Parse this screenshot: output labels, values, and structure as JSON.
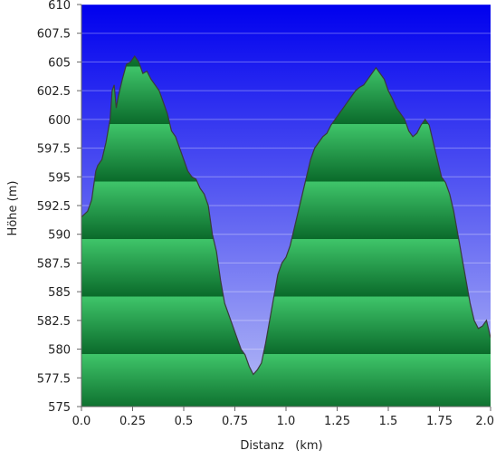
{
  "chart_data": {
    "type": "area",
    "title": "",
    "xlabel": "Distanz   (km)",
    "ylabel": "Höhe (m)",
    "xlim": [
      0.0,
      2.0
    ],
    "ylim": [
      575,
      610
    ],
    "x_ticks": [
      "0.0",
      "0.25",
      "0.5",
      "0.75",
      "1.0",
      "1.25",
      "1.5",
      "1.75",
      "2.0"
    ],
    "y_ticks": [
      "575",
      "577.5",
      "580",
      "582.5",
      "585",
      "587.5",
      "590",
      "592.5",
      "595",
      "597.5",
      "600",
      "602.5",
      "605",
      "607.5",
      "610"
    ],
    "grid": "horizontal",
    "colors": {
      "sky_top": "#0000ee",
      "sky_bottom": "#b8bef6",
      "fill_light": "#3fc56a",
      "fill_dark": "#0a6a2a",
      "outline": "#3a3a3a"
    },
    "series": [
      {
        "x": [
          0.0,
          0.03,
          0.05,
          0.07,
          0.08,
          0.1,
          0.12,
          0.14,
          0.15,
          0.16,
          0.17,
          0.18,
          0.2,
          0.22,
          0.24,
          0.26,
          0.28,
          0.3,
          0.32,
          0.34,
          0.36,
          0.38,
          0.4,
          0.42,
          0.44,
          0.46,
          0.48,
          0.5,
          0.52,
          0.54,
          0.56,
          0.58,
          0.6,
          0.62,
          0.64,
          0.66,
          0.68,
          0.7,
          0.72,
          0.74,
          0.76,
          0.78,
          0.8,
          0.82,
          0.84,
          0.86,
          0.88,
          0.9,
          0.92,
          0.94,
          0.96,
          0.98,
          1.0,
          1.02,
          1.04,
          1.06,
          1.08,
          1.1,
          1.12,
          1.14,
          1.16,
          1.18,
          1.2,
          1.22,
          1.24,
          1.26,
          1.28,
          1.3,
          1.32,
          1.34,
          1.36,
          1.38,
          1.4,
          1.42,
          1.44,
          1.46,
          1.48,
          1.5,
          1.52,
          1.54,
          1.56,
          1.58,
          1.6,
          1.62,
          1.64,
          1.66,
          1.68,
          1.7,
          1.72,
          1.74,
          1.76,
          1.78,
          1.8,
          1.82,
          1.84,
          1.86,
          1.88,
          1.9,
          1.92,
          1.94,
          1.96,
          1.98,
          2.0
        ],
        "y": [
          591.5,
          592.0,
          593.0,
          595.5,
          596.0,
          596.5,
          598.0,
          600.0,
          602.5,
          603.0,
          601.0,
          602.0,
          603.5,
          604.8,
          605.0,
          605.5,
          605.0,
          604.0,
          604.2,
          603.5,
          603.0,
          602.5,
          601.5,
          600.5,
          599.0,
          598.5,
          597.5,
          596.5,
          595.5,
          595.0,
          594.8,
          594.0,
          593.5,
          592.5,
          590.0,
          588.5,
          586.0,
          584.0,
          583.0,
          582.0,
          581.0,
          580.0,
          579.5,
          578.5,
          577.8,
          578.2,
          578.8,
          580.5,
          582.5,
          584.5,
          586.5,
          587.5,
          588.0,
          589.0,
          590.5,
          592.0,
          593.5,
          595.0,
          596.5,
          597.5,
          598.0,
          598.5,
          598.8,
          599.5,
          600.0,
          600.5,
          601.0,
          601.5,
          602.0,
          602.5,
          602.8,
          603.0,
          603.5,
          604.0,
          604.5,
          604.0,
          603.5,
          602.5,
          601.8,
          601.0,
          600.5,
          600.0,
          599.0,
          598.5,
          598.8,
          599.5,
          600.0,
          599.5,
          598.0,
          596.5,
          595.0,
          594.5,
          593.5,
          592.0,
          590.0,
          588.0,
          586.0,
          584.0,
          582.5,
          581.8,
          582.0,
          582.5,
          581.0
        ]
      }
    ]
  }
}
